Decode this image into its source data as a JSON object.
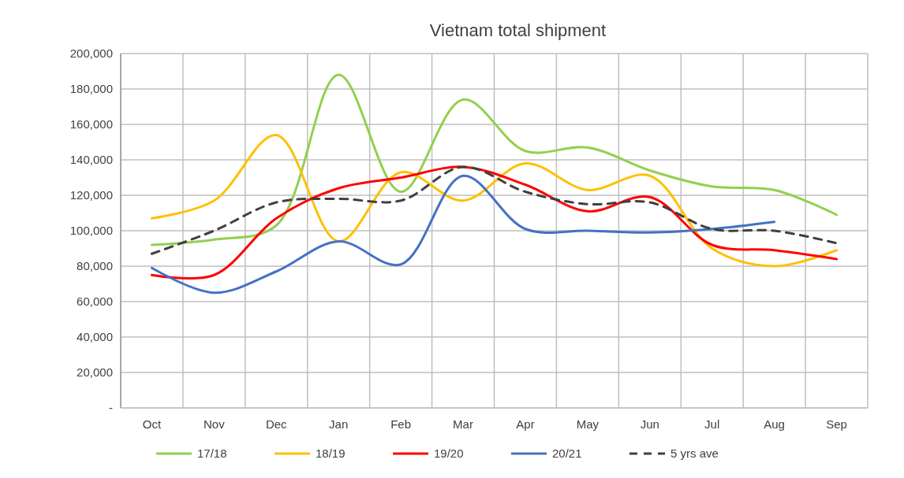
{
  "chart_data": {
    "type": "line",
    "title": "Vietnam total shipment",
    "categories": [
      "Oct",
      "Nov",
      "Dec",
      "Jan",
      "Feb",
      "Mar",
      "Apr",
      "May",
      "Jun",
      "Jul",
      "Aug",
      "Sep"
    ],
    "series": [
      {
        "name": "17/18",
        "color": "#92d050",
        "values": [
          92000,
          95000,
          103000,
          188000,
          122000,
          174000,
          145000,
          147000,
          134000,
          125000,
          123000,
          109000
        ]
      },
      {
        "name": "18/19",
        "color": "#ffc000",
        "values": [
          107000,
          117000,
          154000,
          94000,
          133000,
          117000,
          138000,
          123000,
          131000,
          90000,
          80000,
          89000
        ]
      },
      {
        "name": "19/20",
        "color": "#ff0000",
        "values": [
          75000,
          75000,
          107000,
          124000,
          130000,
          136000,
          126000,
          111000,
          119000,
          92000,
          89000,
          84000
        ]
      },
      {
        "name": "20/21",
        "color": "#4472c4",
        "values": [
          79000,
          65000,
          77000,
          94000,
          81000,
          131000,
          101000,
          100000,
          99000,
          101000,
          105000,
          null
        ]
      },
      {
        "name": "5 yrs ave",
        "color": "#404040",
        "line_style": "dashed",
        "values": [
          87000,
          100000,
          116000,
          118000,
          117000,
          136000,
          122000,
          115000,
          116000,
          101000,
          100000,
          93000
        ]
      }
    ],
    "ylim": [
      0,
      200000
    ],
    "yticks": [
      {
        "value": 0,
        "label": "-"
      },
      {
        "value": 20000,
        "label": "20,000"
      },
      {
        "value": 40000,
        "label": "40,000"
      },
      {
        "value": 60000,
        "label": "60,000"
      },
      {
        "value": 80000,
        "label": "80,000"
      },
      {
        "value": 100000,
        "label": "100,000"
      },
      {
        "value": 120000,
        "label": "120,000"
      },
      {
        "value": 140000,
        "label": "140,000"
      },
      {
        "value": 160000,
        "label": "160,000"
      },
      {
        "value": 180000,
        "label": "180,000"
      },
      {
        "value": 200000,
        "label": "200,000"
      }
    ],
    "grid": true,
    "legend": "bottom",
    "marker": "none"
  }
}
